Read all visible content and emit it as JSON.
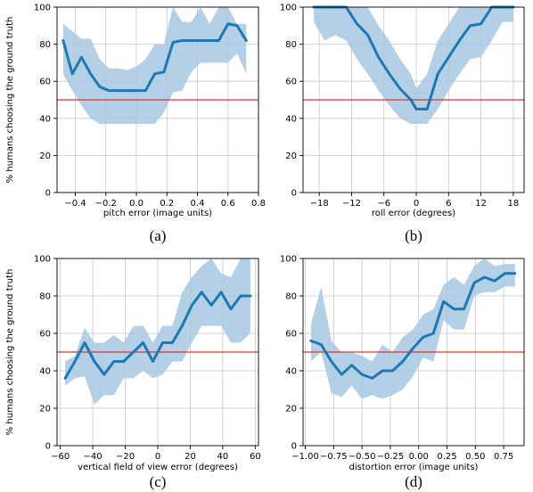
{
  "chart_data": [
    {
      "type": "line",
      "caption": "(a)",
      "xlabel": "pitch error (image units)",
      "ylabel": "% humans choosing the ground truth",
      "xlim": [
        -0.52,
        0.8
      ],
      "ylim": [
        0,
        100
      ],
      "xticks": [
        -0.4,
        -0.2,
        0.0,
        0.2,
        0.4,
        0.6,
        0.8
      ],
      "xtick_labels": [
        "−0.4",
        "−0.2",
        "0.0",
        "0.2",
        "0.4",
        "0.6",
        "0.8"
      ],
      "yticks": [
        0,
        20,
        40,
        60,
        80,
        100
      ],
      "grid": true,
      "reference_line": 50,
      "x": [
        -0.48,
        -0.42,
        -0.36,
        -0.3,
        -0.24,
        -0.18,
        -0.12,
        -0.06,
        0.0,
        0.06,
        0.12,
        0.18,
        0.24,
        0.3,
        0.36,
        0.42,
        0.48,
        0.54,
        0.6,
        0.66,
        0.72
      ],
      "y": [
        82,
        64,
        73,
        64,
        57,
        55,
        55,
        55,
        55,
        55,
        64,
        65,
        81,
        82,
        82,
        82,
        82,
        82,
        91,
        90,
        82
      ],
      "y_lower": [
        64,
        55,
        47,
        40,
        37,
        37,
        37,
        37,
        37,
        37,
        37,
        43,
        54,
        55,
        65,
        70,
        70,
        70,
        70,
        75,
        64
      ],
      "y_upper": [
        91,
        87,
        83,
        83,
        72,
        67,
        67,
        66,
        68,
        72,
        80,
        80,
        100,
        92,
        92,
        100,
        91,
        100,
        100,
        91,
        91
      ]
    },
    {
      "type": "line",
      "caption": "(b)",
      "xlabel": "roll error (degrees)",
      "ylabel": "",
      "xlim": [
        -21,
        20
      ],
      "ylim": [
        0,
        100
      ],
      "xticks": [
        -18,
        -12,
        -6,
        0,
        6,
        12,
        18
      ],
      "xtick_labels": [
        "−18",
        "−12",
        "−6",
        "0",
        "6",
        "12",
        "18"
      ],
      "yticks": [
        0,
        20,
        40,
        60,
        80,
        100
      ],
      "grid": true,
      "reference_line": 50,
      "x": [
        -19,
        -17,
        -15,
        -13,
        -11,
        -9,
        -7,
        -5,
        -3,
        -1,
        0,
        2,
        4,
        6,
        8,
        10,
        12,
        14,
        16,
        18
      ],
      "y": [
        100,
        100,
        100,
        100,
        91,
        85,
        73,
        64,
        56,
        50,
        45,
        45,
        64,
        73,
        82,
        90,
        91,
        100,
        100,
        100
      ],
      "y_lower": [
        92,
        82,
        85,
        82,
        72,
        64,
        55,
        47,
        40,
        37,
        37,
        37,
        45,
        55,
        64,
        72,
        73,
        82,
        92,
        92
      ],
      "y_upper": [
        100,
        100,
        100,
        100,
        100,
        100,
        90,
        82,
        72,
        64,
        56,
        64,
        82,
        91,
        100,
        100,
        100,
        100,
        100,
        100
      ]
    },
    {
      "type": "line",
      "caption": "(c)",
      "xlabel": "vertical field of view error (degrees)",
      "ylabel": "% humans choosing the ground truth",
      "xlim": [
        -62,
        62
      ],
      "ylim": [
        0,
        100
      ],
      "xticks": [
        -60,
        -40,
        -20,
        0,
        20,
        40,
        60
      ],
      "xtick_labels": [
        "−60",
        "−40",
        "−20",
        "0",
        "20",
        "40",
        "60"
      ],
      "yticks": [
        0,
        20,
        40,
        60,
        80,
        100
      ],
      "grid": true,
      "reference_line": 50,
      "x": [
        -57,
        -51,
        -45,
        -39,
        -33,
        -27,
        -21,
        -15,
        -9,
        -3,
        3,
        9,
        15,
        21,
        27,
        33,
        39,
        45,
        51,
        57
      ],
      "y": [
        36,
        45,
        55,
        45,
        38,
        45,
        45,
        50,
        55,
        45,
        55,
        55,
        64,
        75,
        82,
        75,
        82,
        73,
        80,
        80
      ],
      "y_lower": [
        32,
        36,
        37,
        22,
        27,
        27,
        36,
        36,
        40,
        36,
        38,
        45,
        45,
        55,
        64,
        64,
        64,
        55,
        55,
        60
      ],
      "y_upper": [
        45,
        48,
        63,
        55,
        55,
        59,
        55,
        64,
        64,
        55,
        64,
        64,
        82,
        90,
        96,
        100,
        92,
        90,
        100,
        100
      ]
    },
    {
      "type": "line",
      "caption": "(d)",
      "xlabel": "distortion error (image units)",
      "ylabel": "",
      "xlim": [
        -1.02,
        0.93
      ],
      "ylim": [
        0,
        100
      ],
      "xticks": [
        -1.0,
        -0.75,
        -0.5,
        -0.25,
        0.0,
        0.25,
        0.5,
        0.75
      ],
      "xtick_labels": [
        "−1.00",
        "−0.75",
        "−0.50",
        "−0.25",
        "0.00",
        "0.25",
        "0.50",
        "0.75"
      ],
      "yticks": [
        0,
        20,
        40,
        60,
        80,
        100
      ],
      "grid": true,
      "reference_line": 50,
      "x": [
        -0.95,
        -0.86,
        -0.77,
        -0.68,
        -0.59,
        -0.5,
        -0.41,
        -0.32,
        -0.23,
        -0.14,
        -0.05,
        0.04,
        0.13,
        0.22,
        0.31,
        0.4,
        0.49,
        0.58,
        0.67,
        0.76,
        0.85
      ],
      "y": [
        56,
        54,
        45,
        38,
        43,
        38,
        36,
        40,
        40,
        45,
        52,
        58,
        60,
        77,
        73,
        73,
        87,
        90,
        88,
        92,
        92
      ],
      "y_lower": [
        45,
        50,
        28,
        26,
        32,
        25,
        27,
        25,
        27,
        30,
        37,
        47,
        45,
        67,
        62,
        62,
        80,
        82,
        82,
        85,
        85
      ],
      "y_upper": [
        65,
        85,
        56,
        50,
        50,
        48,
        45,
        54,
        50,
        58,
        62,
        70,
        73,
        86,
        90,
        86,
        96,
        100,
        96,
        97,
        97
      ]
    }
  ]
}
